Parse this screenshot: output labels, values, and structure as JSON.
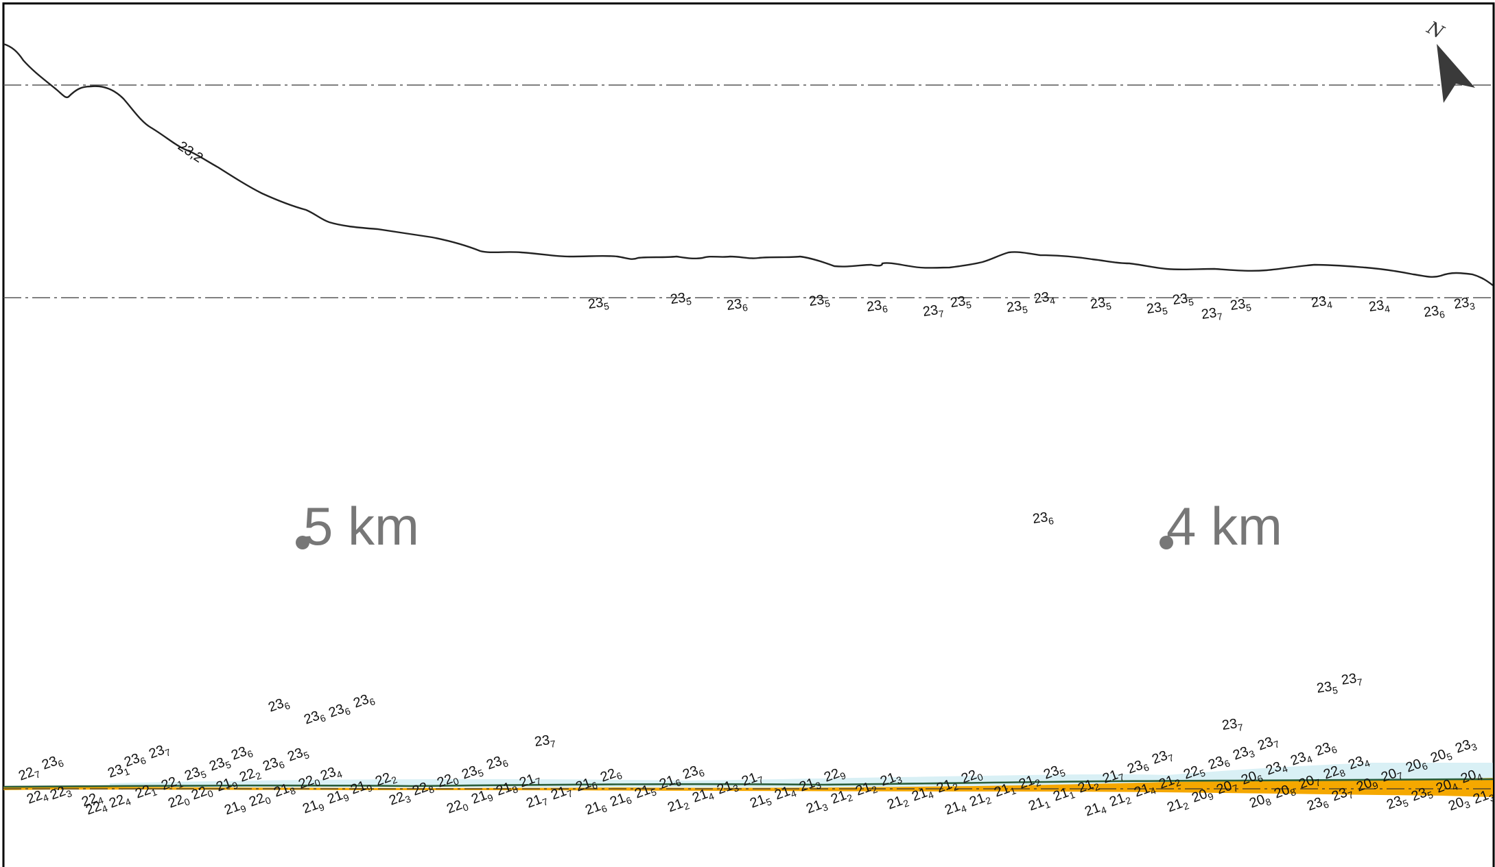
{
  "map": {
    "contour_label": "23,2",
    "north_label": "N",
    "markers": [
      {
        "label": "5 km"
      },
      {
        "label": "4 km"
      }
    ],
    "colors": {
      "shore_fill": "#f5a800",
      "shore_line": "#2a5e3a",
      "shallow": "#bfe6ee",
      "arrow": "#3a3a3a",
      "frame": "#000000"
    },
    "soundings_upper": [
      [
        "23",
        "5"
      ],
      [
        "23",
        "5"
      ],
      [
        "23",
        "6"
      ],
      [
        "23",
        "5"
      ],
      [
        "23",
        "6"
      ],
      [
        "23",
        "7"
      ],
      [
        "23",
        "5"
      ],
      [
        "23",
        "5"
      ],
      [
        "23",
        "4"
      ],
      [
        "23",
        "5"
      ],
      [
        "23",
        "5"
      ],
      [
        "23",
        "5"
      ],
      [
        "23",
        "7"
      ],
      [
        "23",
        "5"
      ],
      [
        "23",
        "4"
      ],
      [
        "23",
        "4"
      ],
      [
        "23",
        "6"
      ],
      [
        "23",
        "3"
      ]
    ],
    "soundings_middle": [
      [
        "23",
        "6"
      ]
    ],
    "soundings_lower": [
      [
        "22",
        "7"
      ],
      [
        "23",
        "6"
      ],
      [
        "22",
        "4"
      ],
      [
        "22",
        "3"
      ],
      [
        "22",
        "4"
      ],
      [
        "23",
        "1"
      ],
      [
        "23",
        "6"
      ],
      [
        "23",
        "7"
      ],
      [
        "22",
        "4"
      ],
      [
        "22",
        "4"
      ],
      [
        "22",
        "1"
      ],
      [
        "22",
        "1"
      ],
      [
        "23",
        "5"
      ],
      [
        "23",
        "5"
      ],
      [
        "23",
        "6"
      ],
      [
        "23",
        "6"
      ],
      [
        "23",
        "6"
      ],
      [
        "23",
        "6"
      ],
      [
        "23",
        "6"
      ],
      [
        "22",
        "0"
      ],
      [
        "22",
        "0"
      ],
      [
        "21",
        "9"
      ],
      [
        "22",
        "2"
      ],
      [
        "23",
        "6"
      ],
      [
        "23",
        "5"
      ],
      [
        "21",
        "9"
      ],
      [
        "22",
        "0"
      ],
      [
        "21",
        "8"
      ],
      [
        "22",
        "0"
      ],
      [
        "23",
        "4"
      ],
      [
        "21",
        "9"
      ],
      [
        "21",
        "9"
      ],
      [
        "21",
        "9"
      ],
      [
        "22",
        "2"
      ],
      [
        "22",
        "3"
      ],
      [
        "22",
        "8"
      ],
      [
        "22",
        "0"
      ],
      [
        "23",
        "5"
      ],
      [
        "23",
        "6"
      ],
      [
        "22",
        "0"
      ],
      [
        "21",
        "9"
      ],
      [
        "21",
        "8"
      ],
      [
        "21",
        "7"
      ],
      [
        "23",
        "7"
      ],
      [
        "21",
        "7"
      ],
      [
        "21",
        "7"
      ],
      [
        "21",
        "6"
      ],
      [
        "22",
        "6"
      ],
      [
        "21",
        "6"
      ],
      [
        "21",
        "6"
      ],
      [
        "21",
        "5"
      ],
      [
        "21",
        "6"
      ],
      [
        "23",
        "6"
      ],
      [
        "21",
        "2"
      ],
      [
        "21",
        "4"
      ],
      [
        "21",
        "3"
      ],
      [
        "21",
        "7"
      ],
      [
        "21",
        "5"
      ],
      [
        "21",
        "4"
      ],
      [
        "21",
        "3"
      ],
      [
        "22",
        "9"
      ],
      [
        "21",
        "3"
      ],
      [
        "21",
        "2"
      ],
      [
        "21",
        "2"
      ],
      [
        "21",
        "3"
      ],
      [
        "21",
        "2"
      ],
      [
        "21",
        "4"
      ],
      [
        "21",
        "2"
      ],
      [
        "22",
        "0"
      ],
      [
        "21",
        "4"
      ],
      [
        "21",
        "2"
      ],
      [
        "21",
        "1"
      ],
      [
        "21",
        "2"
      ],
      [
        "23",
        "5"
      ],
      [
        "21",
        "1"
      ],
      [
        "21",
        "1"
      ],
      [
        "21",
        "2"
      ],
      [
        "21",
        "7"
      ],
      [
        "23",
        "6"
      ],
      [
        "23",
        "7"
      ],
      [
        "21",
        "4"
      ],
      [
        "21",
        "2"
      ],
      [
        "21",
        "4"
      ],
      [
        "21",
        "2"
      ],
      [
        "22",
        "5"
      ],
      [
        "23",
        "6"
      ],
      [
        "23",
        "3"
      ],
      [
        "23",
        "7"
      ],
      [
        "23",
        "7"
      ],
      [
        "21",
        "2"
      ],
      [
        "20",
        "9"
      ],
      [
        "20",
        "7"
      ],
      [
        "20",
        "6"
      ],
      [
        "23",
        "4"
      ],
      [
        "23",
        "4"
      ],
      [
        "23",
        "6"
      ],
      [
        "20",
        "8"
      ],
      [
        "20",
        "8"
      ],
      [
        "20",
        "7"
      ],
      [
        "22",
        "8"
      ],
      [
        "23",
        "4"
      ],
      [
        "23",
        "5"
      ],
      [
        "23",
        "7"
      ],
      [
        "23",
        "6"
      ],
      [
        "23",
        "7"
      ],
      [
        "20",
        "9"
      ],
      [
        "20",
        "7"
      ],
      [
        "20",
        "6"
      ],
      [
        "20",
        "5"
      ],
      [
        "23",
        "3"
      ],
      [
        "23",
        "5"
      ],
      [
        "23",
        "5"
      ],
      [
        "20",
        "4"
      ],
      [
        "20",
        "4"
      ],
      [
        "20",
        "3"
      ],
      [
        "21",
        "3"
      ],
      [
        "20",
        "8"
      ],
      [
        "20",
        "4"
      ]
    ]
  }
}
